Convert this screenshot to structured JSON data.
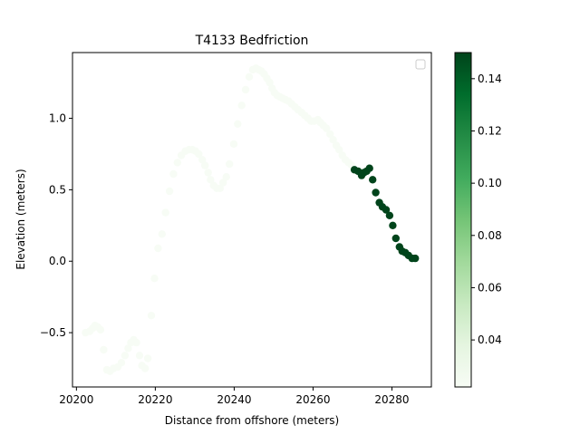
{
  "chart_data": {
    "type": "scatter",
    "title": "T4133 Bedfriction",
    "xlabel": "Distance from offshore (meters)",
    "ylabel": "Elevation (meters)",
    "xlim": [
      20199,
      20290
    ],
    "ylim": [
      -0.88,
      1.46
    ],
    "xticks": [
      20200,
      20220,
      20240,
      20260,
      20280
    ],
    "yticks": [
      -0.5,
      0.0,
      0.5,
      1.0
    ],
    "ytick_labels": [
      "−0.5",
      "0.0",
      "0.5",
      "1.0"
    ],
    "grid": false,
    "legend": {
      "placement": "upper right",
      "entries": []
    },
    "colormap": "Greens",
    "colorbar": {
      "range": [
        0.022,
        0.15
      ],
      "ticks": [
        0.04,
        0.06,
        0.08,
        0.1,
        0.12,
        0.14
      ],
      "tick_labels": [
        "0.04",
        "0.06",
        "0.08",
        "0.10",
        "0.12",
        "0.14"
      ]
    },
    "series": [
      {
        "x": [
          20202.3,
          20203.4,
          20204.1,
          20204.7,
          20205.4,
          20206.1,
          20206.9,
          20207.7,
          20208.5,
          20209.4,
          20210.5,
          20211.4,
          20212.3,
          20213.1,
          20213.8,
          20214.5,
          20215.2,
          20216.0,
          20216.6,
          20217.4,
          20218.1,
          20219.0,
          20219.8,
          20220.7,
          20221.7,
          20222.6,
          20223.6,
          20224.6,
          20225.6,
          20226.6,
          20227.6,
          20228.5,
          20229.4,
          20230.2,
          20231.0,
          20231.9,
          20232.6,
          20233.4,
          20234.0,
          20234.8,
          20235.6,
          20236.4,
          20237.2,
          20238.0,
          20238.8,
          20239.9,
          20240.9,
          20241.9,
          20242.9,
          20243.8,
          20244.7,
          20245.5,
          20246.2,
          20246.9,
          20247.6,
          20248.3,
          20249.0,
          20249.6,
          20250.2,
          20250.9,
          20251.6,
          20252.3,
          20253.0,
          20253.8,
          20254.6,
          20255.4,
          20256.2,
          20257.1,
          20257.9,
          20258.7,
          20259.5,
          20260.3,
          20261.2,
          20261.9,
          20262.6,
          20263.4,
          20264.3,
          20265.1,
          20265.9,
          20266.6,
          20267.4,
          20268.2,
          20269.0,
          20269.8
        ],
        "y": [
          -0.5,
          -0.49,
          -0.47,
          -0.45,
          -0.46,
          -0.48,
          -0.62,
          -0.76,
          -0.77,
          -0.75,
          -0.74,
          -0.71,
          -0.66,
          -0.61,
          -0.57,
          -0.55,
          -0.57,
          -0.66,
          -0.73,
          -0.75,
          -0.68,
          -0.38,
          -0.12,
          0.09,
          0.19,
          0.34,
          0.49,
          0.61,
          0.69,
          0.74,
          0.77,
          0.78,
          0.78,
          0.77,
          0.75,
          0.71,
          0.67,
          0.62,
          0.57,
          0.53,
          0.51,
          0.51,
          0.55,
          0.59,
          0.68,
          0.82,
          0.96,
          1.09,
          1.2,
          1.29,
          1.34,
          1.35,
          1.34,
          1.33,
          1.31,
          1.28,
          1.25,
          1.21,
          1.18,
          1.16,
          1.15,
          1.14,
          1.13,
          1.12,
          1.1,
          1.08,
          1.06,
          1.04,
          1.02,
          1.0,
          0.98,
          0.98,
          0.99,
          0.97,
          0.95,
          0.93,
          0.89,
          0.85,
          0.81,
          0.78,
          0.74,
          0.71,
          0.69,
          0.67
        ],
        "c": 0.022
      },
      {
        "x": [
          20270.5,
          20271.4,
          20272.3,
          20272.9,
          20273.6,
          20274.3,
          20275.1,
          20275.9,
          20276.8,
          20277.6,
          20278.5,
          20279.4,
          20280.2,
          20281.0,
          20281.9,
          20282.6,
          20283.4,
          20284.2,
          20285.1,
          20285.9
        ],
        "y": [
          0.64,
          0.63,
          0.6,
          0.62,
          0.63,
          0.65,
          0.57,
          0.48,
          0.41,
          0.38,
          0.36,
          0.32,
          0.25,
          0.16,
          0.1,
          0.07,
          0.06,
          0.04,
          0.02,
          0.02
        ],
        "c": 0.15
      }
    ]
  }
}
